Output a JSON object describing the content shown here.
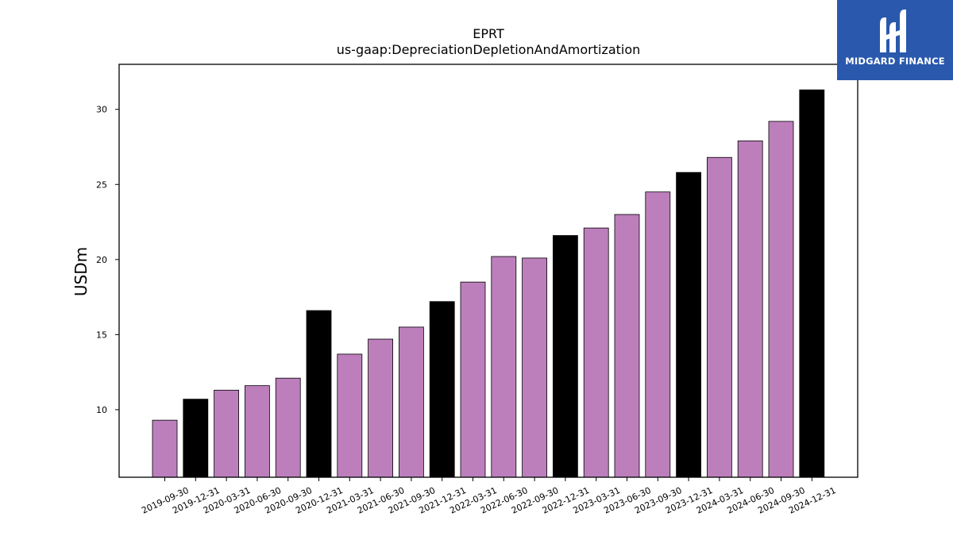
{
  "brand": {
    "name": "MIDGARD FINANCE",
    "color": "#2a58ad"
  },
  "chart_data": {
    "type": "bar",
    "title": "EPRT",
    "subtitle": "us-gaap:DepreciationDepletionAndAmortization",
    "xlabel": "",
    "ylabel": "USDm",
    "ylim": [
      5.5,
      33
    ],
    "yticks": [
      10,
      15,
      20,
      25,
      30
    ],
    "grid": false,
    "colors": {
      "quarter": "#bc7fbc",
      "year_end": "#000000",
      "edge": "#000000"
    },
    "categories": [
      "2019-09-30",
      "2019-12-31",
      "2020-03-31",
      "2020-06-30",
      "2020-09-30",
      "2020-12-31",
      "2021-03-31",
      "2021-06-30",
      "2021-09-30",
      "2021-12-31",
      "2022-03-31",
      "2022-06-30",
      "2022-09-30",
      "2022-12-31",
      "2023-03-31",
      "2023-06-30",
      "2023-09-30",
      "2023-12-31",
      "2024-03-31",
      "2024-06-30",
      "2024-09-30",
      "2024-12-31"
    ],
    "values": [
      9.3,
      10.7,
      11.3,
      11.6,
      12.1,
      16.6,
      13.7,
      14.7,
      15.5,
      17.2,
      18.5,
      20.2,
      20.1,
      21.6,
      22.1,
      23.0,
      24.5,
      25.8,
      26.8,
      27.9,
      29.2,
      31.3
    ]
  }
}
